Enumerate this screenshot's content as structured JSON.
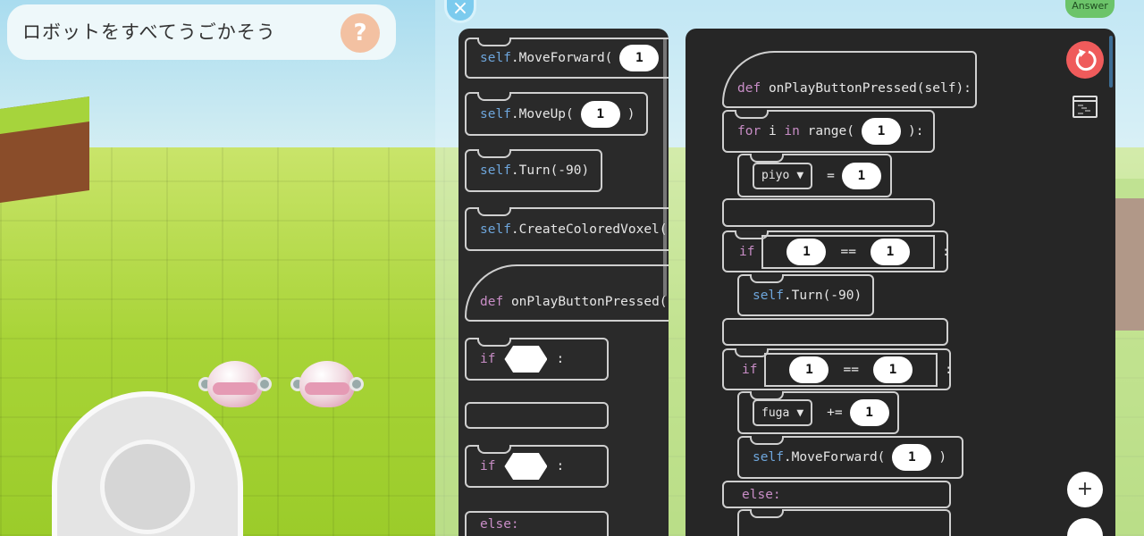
{
  "hint": {
    "text": "ロボットをすべてうごかそう",
    "help_label": "?"
  },
  "close_label": "×",
  "answer_label": "Answer",
  "icons": {
    "reset": "reset-icon",
    "console": "console-icon",
    "zoom_in": "plus-icon"
  },
  "colors": {
    "reset": "#ef5b5b",
    "answer": "#6cc46a",
    "panel": "#2a2a2a",
    "self": "#6ea6dc",
    "keyword": "#c88dc6"
  },
  "palette": {
    "move_forward": {
      "self": "self",
      "method": ".MoveForward(",
      "arg": "1"
    },
    "move_up": {
      "self": "self",
      "method": ".MoveUp(",
      "arg": "1",
      "close": ")"
    },
    "turn": {
      "self": "self",
      "method": ".Turn(-90)"
    },
    "voxel": {
      "self": "self",
      "method": ".CreateColoredVoxel("
    },
    "def": {
      "kw": "def",
      "name": "onPlayButtonPressed("
    },
    "if1": {
      "kw": "if",
      "colon": ":"
    },
    "if2": {
      "kw": "if",
      "colon": ":",
      "else": "else:"
    }
  },
  "editor": {
    "def": {
      "kw": "def",
      "name": "onPlayButtonPressed(self):"
    },
    "for": {
      "kw": "for",
      "var": "i",
      "in": "in",
      "range": "range(",
      "arg": "1",
      "close": "):"
    },
    "assign": {
      "var": "piyo",
      "op": "=",
      "value": "1"
    },
    "if1": {
      "kw": "if",
      "left": "1",
      "op": "==",
      "right": "1",
      "colon": ":",
      "body": {
        "self": "self",
        "method": ".Turn(-90)"
      }
    },
    "if2": {
      "kw": "if",
      "left": "1",
      "op": "==",
      "right": "1",
      "colon": ":",
      "aug": {
        "var": "fuga",
        "op": "+=",
        "value": "1"
      },
      "move": {
        "self": "self",
        "method": ".MoveForward(",
        "arg": "1",
        "close": ")"
      },
      "else": "else:"
    }
  },
  "zoom_in_label": "+"
}
